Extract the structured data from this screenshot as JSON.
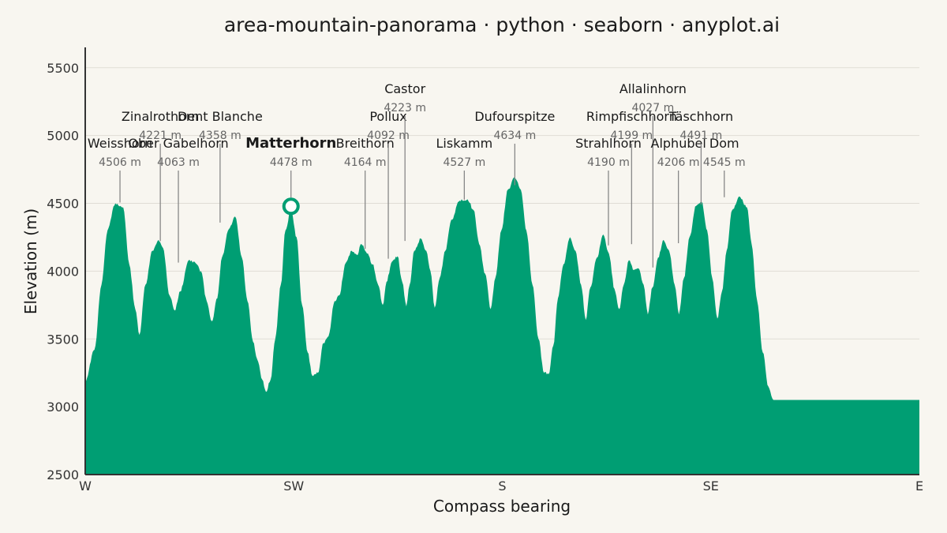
{
  "chart_data": {
    "type": "area",
    "title": "area-mountain-panorama · python · seaborn · anyplot.ai",
    "xlabel": "Compass bearing",
    "ylabel": "Elevation (m)",
    "xlim": [
      270,
      90
    ],
    "ylim": [
      2500,
      5650
    ],
    "yticks": [
      2500,
      3000,
      3500,
      4000,
      4500,
      5000,
      5500
    ],
    "xticks": [
      {
        "bearing": 270,
        "label": "W"
      },
      {
        "bearing": 225,
        "label": "SW"
      },
      {
        "bearing": 180,
        "label": "S"
      },
      {
        "bearing": 135,
        "label": "SE"
      },
      {
        "bearing": 90,
        "label": "E"
      }
    ],
    "grid": "horizontal",
    "fill_color": "#009e73",
    "highlight_marker": "Matterhorn",
    "profile": [
      {
        "bearing": 270,
        "elev": 3190
      },
      {
        "bearing": 268,
        "elev": 3420
      },
      {
        "bearing": 266.5,
        "elev": 3900
      },
      {
        "bearing": 265.2,
        "elev": 4300
      },
      {
        "bearing": 263.5,
        "elev": 4500
      },
      {
        "bearing": 261.8,
        "elev": 4470
      },
      {
        "bearing": 260.5,
        "elev": 4050
      },
      {
        "bearing": 259.2,
        "elev": 3720
      },
      {
        "bearing": 258.3,
        "elev": 3530
      },
      {
        "bearing": 257,
        "elev": 3900
      },
      {
        "bearing": 255.5,
        "elev": 4150
      },
      {
        "bearing": 254.2,
        "elev": 4230
      },
      {
        "bearing": 253.2,
        "elev": 4170
      },
      {
        "bearing": 251.8,
        "elev": 3820
      },
      {
        "bearing": 250.7,
        "elev": 3710
      },
      {
        "bearing": 249.5,
        "elev": 3850
      },
      {
        "bearing": 247.7,
        "elev": 4080
      },
      {
        "bearing": 246.2,
        "elev": 4060
      },
      {
        "bearing": 245,
        "elev": 4000
      },
      {
        "bearing": 243.8,
        "elev": 3780
      },
      {
        "bearing": 242.7,
        "elev": 3630
      },
      {
        "bearing": 241.5,
        "elev": 3800
      },
      {
        "bearing": 240.5,
        "elev": 4100
      },
      {
        "bearing": 239,
        "elev": 4310
      },
      {
        "bearing": 237.6,
        "elev": 4400
      },
      {
        "bearing": 236.2,
        "elev": 4100
      },
      {
        "bearing": 235,
        "elev": 3780
      },
      {
        "bearing": 233.8,
        "elev": 3480
      },
      {
        "bearing": 232.9,
        "elev": 3350
      },
      {
        "bearing": 231.8,
        "elev": 3200
      },
      {
        "bearing": 231,
        "elev": 3110
      },
      {
        "bearing": 230,
        "elev": 3200
      },
      {
        "bearing": 229,
        "elev": 3500
      },
      {
        "bearing": 227.8,
        "elev": 3900
      },
      {
        "bearing": 226.8,
        "elev": 4300
      },
      {
        "bearing": 225.6,
        "elev": 4460
      },
      {
        "bearing": 224.4,
        "elev": 4250
      },
      {
        "bearing": 223.2,
        "elev": 3750
      },
      {
        "bearing": 222,
        "elev": 3400
      },
      {
        "bearing": 221,
        "elev": 3230
      },
      {
        "bearing": 219.8,
        "elev": 3250
      },
      {
        "bearing": 218.6,
        "elev": 3470
      },
      {
        "bearing": 217.5,
        "elev": 3520
      },
      {
        "bearing": 216.2,
        "elev": 3780
      },
      {
        "bearing": 215.2,
        "elev": 3820
      },
      {
        "bearing": 213.8,
        "elev": 4060
      },
      {
        "bearing": 212.5,
        "elev": 4150
      },
      {
        "bearing": 211.4,
        "elev": 4120
      },
      {
        "bearing": 210.4,
        "elev": 4200
      },
      {
        "bearing": 209.2,
        "elev": 4130
      },
      {
        "bearing": 208,
        "elev": 4050
      },
      {
        "bearing": 206.8,
        "elev": 3900
      },
      {
        "bearing": 205.8,
        "elev": 3750
      },
      {
        "bearing": 205,
        "elev": 3920
      },
      {
        "bearing": 203.8,
        "elev": 4070
      },
      {
        "bearing": 202.6,
        "elev": 4110
      },
      {
        "bearing": 201.6,
        "elev": 3920
      },
      {
        "bearing": 200.7,
        "elev": 3740
      },
      {
        "bearing": 200,
        "elev": 3900
      },
      {
        "bearing": 199,
        "elev": 4150
      },
      {
        "bearing": 197.6,
        "elev": 4240
      },
      {
        "bearing": 196.4,
        "elev": 4150
      },
      {
        "bearing": 195.5,
        "elev": 4000
      },
      {
        "bearing": 194.6,
        "elev": 3730
      },
      {
        "bearing": 193.5,
        "elev": 3950
      },
      {
        "bearing": 192.3,
        "elev": 4150
      },
      {
        "bearing": 191,
        "elev": 4380
      },
      {
        "bearing": 189.2,
        "elev": 4520
      },
      {
        "bearing": 187.5,
        "elev": 4530
      },
      {
        "bearing": 186.2,
        "elev": 4450
      },
      {
        "bearing": 185,
        "elev": 4200
      },
      {
        "bearing": 183.7,
        "elev": 3980
      },
      {
        "bearing": 182.5,
        "elev": 3720
      },
      {
        "bearing": 181.5,
        "elev": 3950
      },
      {
        "bearing": 180.2,
        "elev": 4300
      },
      {
        "bearing": 178.8,
        "elev": 4600
      },
      {
        "bearing": 177.3,
        "elev": 4690
      },
      {
        "bearing": 176,
        "elev": 4600
      },
      {
        "bearing": 174.8,
        "elev": 4300
      },
      {
        "bearing": 173.5,
        "elev": 3900
      },
      {
        "bearing": 172.2,
        "elev": 3500
      },
      {
        "bearing": 171,
        "elev": 3250
      },
      {
        "bearing": 170,
        "elev": 3240
      },
      {
        "bearing": 169,
        "elev": 3450
      },
      {
        "bearing": 168,
        "elev": 3800
      },
      {
        "bearing": 166.8,
        "elev": 4050
      },
      {
        "bearing": 165.4,
        "elev": 4250
      },
      {
        "bearing": 164.2,
        "elev": 4150
      },
      {
        "bearing": 163,
        "elev": 3900
      },
      {
        "bearing": 162,
        "elev": 3640
      },
      {
        "bearing": 161,
        "elev": 3880
      },
      {
        "bearing": 159.6,
        "elev": 4100
      },
      {
        "bearing": 158.2,
        "elev": 4270
      },
      {
        "bearing": 157,
        "elev": 4130
      },
      {
        "bearing": 155.8,
        "elev": 3870
      },
      {
        "bearing": 154.8,
        "elev": 3720
      },
      {
        "bearing": 153.8,
        "elev": 3900
      },
      {
        "bearing": 152.7,
        "elev": 4080
      },
      {
        "bearing": 151.6,
        "elev": 4010
      },
      {
        "bearing": 150.6,
        "elev": 4020
      },
      {
        "bearing": 149.5,
        "elev": 3900
      },
      {
        "bearing": 148.6,
        "elev": 3680
      },
      {
        "bearing": 147.6,
        "elev": 3880
      },
      {
        "bearing": 146.4,
        "elev": 4100
      },
      {
        "bearing": 145.2,
        "elev": 4230
      },
      {
        "bearing": 144,
        "elev": 4150
      },
      {
        "bearing": 142.8,
        "elev": 3900
      },
      {
        "bearing": 141.9,
        "elev": 3680
      },
      {
        "bearing": 140.8,
        "elev": 3950
      },
      {
        "bearing": 139.6,
        "elev": 4250
      },
      {
        "bearing": 138.2,
        "elev": 4480
      },
      {
        "bearing": 137,
        "elev": 4510
      },
      {
        "bearing": 135.8,
        "elev": 4300
      },
      {
        "bearing": 134.7,
        "elev": 3950
      },
      {
        "bearing": 133.6,
        "elev": 3650
      },
      {
        "bearing": 132.6,
        "elev": 3850
      },
      {
        "bearing": 131.6,
        "elev": 4150
      },
      {
        "bearing": 130.4,
        "elev": 4450
      },
      {
        "bearing": 128.8,
        "elev": 4550
      },
      {
        "bearing": 127.2,
        "elev": 4470
      },
      {
        "bearing": 126.2,
        "elev": 4200
      },
      {
        "bearing": 125,
        "elev": 3780
      },
      {
        "bearing": 123.8,
        "elev": 3400
      },
      {
        "bearing": 122.6,
        "elev": 3150
      },
      {
        "bearing": 121.5,
        "elev": 3050
      }
    ],
    "peaks": [
      {
        "name": "Weisshorn",
        "elevation_label": "4506 m",
        "bearing": 262.5,
        "elevation": 4506,
        "label_tier": 0
      },
      {
        "name": "Zinalrothorn",
        "elevation_label": "4221 m",
        "bearing": 253.8,
        "elevation": 4221,
        "label_tier": 1
      },
      {
        "name": "Ober Gabelhorn",
        "elevation_label": "4063 m",
        "bearing": 249.9,
        "elevation": 4063,
        "label_tier": 0
      },
      {
        "name": "Dent Blanche",
        "elevation_label": "4358 m",
        "bearing": 240.9,
        "elevation": 4358,
        "label_tier": 1
      },
      {
        "name": "Matterhorn",
        "elevation_label": "4478 m",
        "bearing": 225.6,
        "elevation": 4478,
        "label_tier": 0,
        "highlight": true
      },
      {
        "name": "Breithorn",
        "elevation_label": "4164 m",
        "bearing": 209.6,
        "elevation": 4164,
        "label_tier": 0
      },
      {
        "name": "Pollux",
        "elevation_label": "4092 m",
        "bearing": 204.6,
        "elevation": 4092,
        "label_tier": 1
      },
      {
        "name": "Castor",
        "elevation_label": "4223 m",
        "bearing": 201.0,
        "elevation": 4223,
        "label_tier": 2
      },
      {
        "name": "Liskamm",
        "elevation_label": "4527 m",
        "bearing": 188.2,
        "elevation": 4527,
        "label_tier": 0
      },
      {
        "name": "Dufourspitze",
        "elevation_label": "4634 m",
        "bearing": 177.3,
        "elevation": 4634,
        "label_tier": 1
      },
      {
        "name": "Strahlhorn",
        "elevation_label": "4190 m",
        "bearing": 157.1,
        "elevation": 4190,
        "label_tier": 0
      },
      {
        "name": "Rimpfischhorn",
        "elevation_label": "4199 m",
        "bearing": 152.1,
        "elevation": 4199,
        "label_tier": 1
      },
      {
        "name": "Allalinhorn",
        "elevation_label": "4027 m",
        "bearing": 147.5,
        "elevation": 4027,
        "label_tier": 2
      },
      {
        "name": "Alphubel",
        "elevation_label": "4206 m",
        "bearing": 142.0,
        "elevation": 4206,
        "label_tier": 0
      },
      {
        "name": "Täschhorn",
        "elevation_label": "4491 m",
        "bearing": 137.1,
        "elevation": 4491,
        "label_tier": 1
      },
      {
        "name": "Dom",
        "elevation_label": "4545 m",
        "bearing": 132.1,
        "elevation": 4545,
        "label_tier": 0
      }
    ]
  }
}
